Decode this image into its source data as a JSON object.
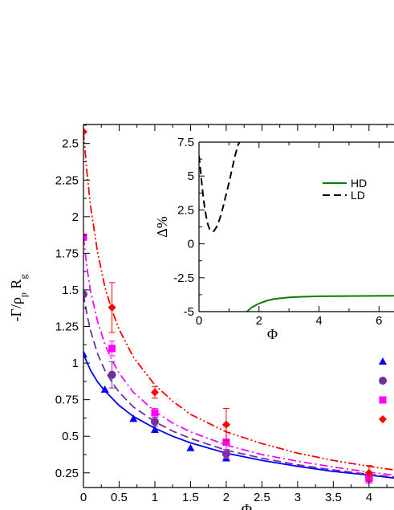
{
  "chart_data": [
    {
      "type": "line",
      "xlabel": "Φ",
      "ylabel": "-Γ/ρ_p R_g",
      "xlim": [
        0,
        4.35
      ],
      "ylim": [
        0.15,
        2.63
      ],
      "grid": false,
      "x_ticks": [
        "0",
        "0.5",
        "1",
        "1.5",
        "2",
        "2.5",
        "3",
        "3.5",
        "4"
      ],
      "y_ticks": [
        "0.25",
        "0.5",
        "0.75",
        "1",
        "1.25",
        "1.5",
        "1.75",
        "2",
        "2.25",
        "2.5"
      ],
      "series": [
        {
          "marker": "triangle",
          "color": "#0000ff",
          "line_style": "solid",
          "points": [
            {
              "x": 0,
              "y": 1.06,
              "err": 0
            },
            {
              "x": 0.3,
              "y": 0.82,
              "err": 0
            },
            {
              "x": 0.7,
              "y": 0.62,
              "err": 0
            },
            {
              "x": 1,
              "y": 0.545,
              "err": 0
            },
            {
              "x": 1.5,
              "y": 0.42,
              "err": 0
            },
            {
              "x": 2,
              "y": 0.35,
              "err": 0
            },
            {
              "x": 4,
              "y": 0.22,
              "err": 0
            }
          ],
          "fit": [
            [
              0,
              1.06
            ],
            [
              0.1,
              0.95
            ],
            [
              0.2,
              0.87
            ],
            [
              0.3,
              0.81
            ],
            [
              0.4,
              0.76
            ],
            [
              0.5,
              0.71
            ],
            [
              0.7,
              0.635
            ],
            [
              1,
              0.555
            ],
            [
              1.25,
              0.5
            ],
            [
              1.5,
              0.455
            ],
            [
              2,
              0.385
            ],
            [
              2.5,
              0.335
            ],
            [
              3,
              0.295
            ],
            [
              3.5,
              0.26
            ],
            [
              4,
              0.235
            ],
            [
              4.35,
              0.215
            ]
          ]
        },
        {
          "marker": "circle",
          "color": "#7030a0",
          "line_style": "dashed",
          "points": [
            {
              "x": 0,
              "y": 1.47,
              "err": 0
            },
            {
              "x": 0.4,
              "y": 0.92,
              "err": 0.09
            },
            {
              "x": 1,
              "y": 0.6,
              "err": 0.03
            },
            {
              "x": 2,
              "y": 0.38,
              "err": 0.03
            },
            {
              "x": 4,
              "y": 0.22,
              "err": 0.03
            }
          ],
          "fit": [
            [
              0,
              1.47
            ],
            [
              0.05,
              1.33
            ],
            [
              0.1,
              1.22
            ],
            [
              0.2,
              1.06
            ],
            [
              0.3,
              0.95
            ],
            [
              0.4,
              0.87
            ],
            [
              0.5,
              0.8
            ],
            [
              0.7,
              0.7
            ],
            [
              1,
              0.6
            ],
            [
              1.25,
              0.535
            ],
            [
              1.5,
              0.485
            ],
            [
              2,
              0.405
            ],
            [
              2.5,
              0.35
            ],
            [
              3,
              0.305
            ],
            [
              3.5,
              0.27
            ],
            [
              4,
              0.24
            ],
            [
              4.35,
              0.222
            ]
          ]
        },
        {
          "marker": "square",
          "color": "#ff00ff",
          "line_style": "dash-dot",
          "points": [
            {
              "x": 0,
              "y": 1.86,
              "err": 0
            },
            {
              "x": 0.4,
              "y": 1.1,
              "err": 0.05
            },
            {
              "x": 1,
              "y": 0.66,
              "err": 0.03
            },
            {
              "x": 2,
              "y": 0.46,
              "err": 0.11
            },
            {
              "x": 4,
              "y": 0.21,
              "err": 0.03
            }
          ],
          "fit": [
            [
              0,
              1.86
            ],
            [
              0.05,
              1.65
            ],
            [
              0.1,
              1.49
            ],
            [
              0.2,
              1.28
            ],
            [
              0.3,
              1.13
            ],
            [
              0.4,
              1.02
            ],
            [
              0.5,
              0.93
            ],
            [
              0.7,
              0.8
            ],
            [
              1,
              0.67
            ],
            [
              1.25,
              0.59
            ],
            [
              1.5,
              0.53
            ],
            [
              2,
              0.44
            ],
            [
              2.5,
              0.375
            ],
            [
              3,
              0.33
            ],
            [
              3.5,
              0.29
            ],
            [
              4,
              0.255
            ],
            [
              4.35,
              0.235
            ]
          ]
        },
        {
          "marker": "diamond",
          "color": "#ff0000",
          "line_style": "dash-dot-dot",
          "points": [
            {
              "x": 0,
              "y": 2.58,
              "err": 0
            },
            {
              "x": 0.4,
              "y": 1.38,
              "err": 0.17
            },
            {
              "x": 1,
              "y": 0.8,
              "err": 0.04
            },
            {
              "x": 2,
              "y": 0.58,
              "err": 0.11
            },
            {
              "x": 4,
              "y": 0.25,
              "err": 0.05
            }
          ],
          "fit": [
            [
              0,
              2.58
            ],
            [
              0.05,
              2.3
            ],
            [
              0.1,
              2.07
            ],
            [
              0.2,
              1.75
            ],
            [
              0.3,
              1.52
            ],
            [
              0.4,
              1.36
            ],
            [
              0.5,
              1.23
            ],
            [
              0.7,
              1.04
            ],
            [
              1,
              0.85
            ],
            [
              1.25,
              0.74
            ],
            [
              1.5,
              0.65
            ],
            [
              2,
              0.53
            ],
            [
              2.5,
              0.45
            ],
            [
              3,
              0.385
            ],
            [
              3.5,
              0.335
            ],
            [
              4,
              0.295
            ],
            [
              4.35,
              0.27
            ]
          ]
        }
      ]
    },
    {
      "type": "line",
      "xlabel": "Φ",
      "ylabel": "Δ%",
      "xlim": [
        0,
        6.5
      ],
      "ylim": [
        -5,
        7.5
      ],
      "grid": false,
      "legend_position": "top-right",
      "x_ticks": [
        "0",
        "2",
        "4",
        "6"
      ],
      "y_ticks": [
        "-5",
        "-2.5",
        "0",
        "2.5",
        "5",
        "7.5"
      ],
      "series": [
        {
          "name": "HD",
          "color": "#008000",
          "line_style": "solid",
          "points": [
            [
              1.6,
              -5.0
            ],
            [
              1.75,
              -4.7
            ],
            [
              2,
              -4.4
            ],
            [
              2.25,
              -4.2
            ],
            [
              2.5,
              -4.07
            ],
            [
              3,
              -3.95
            ],
            [
              3.5,
              -3.9
            ],
            [
              4,
              -3.87
            ],
            [
              5,
              -3.85
            ],
            [
              6,
              -3.84
            ],
            [
              6.5,
              -3.83
            ]
          ]
        },
        {
          "name": "LD",
          "color": "#000000",
          "line_style": "dashed",
          "points": [
            [
              0,
              6.5
            ],
            [
              0.05,
              5.4
            ],
            [
              0.1,
              4.3
            ],
            [
              0.15,
              3.3
            ],
            [
              0.2,
              2.5
            ],
            [
              0.25,
              1.9
            ],
            [
              0.3,
              1.4
            ],
            [
              0.35,
              1.1
            ],
            [
              0.4,
              0.95
            ],
            [
              0.45,
              0.9
            ],
            [
              0.5,
              0.95
            ],
            [
              0.6,
              1.3
            ],
            [
              0.7,
              1.9
            ],
            [
              0.8,
              2.7
            ],
            [
              0.9,
              3.6
            ],
            [
              1.0,
              4.5
            ],
            [
              1.1,
              5.5
            ],
            [
              1.2,
              6.5
            ],
            [
              1.3,
              7.3
            ],
            [
              1.35,
              7.5
            ]
          ]
        }
      ]
    }
  ]
}
